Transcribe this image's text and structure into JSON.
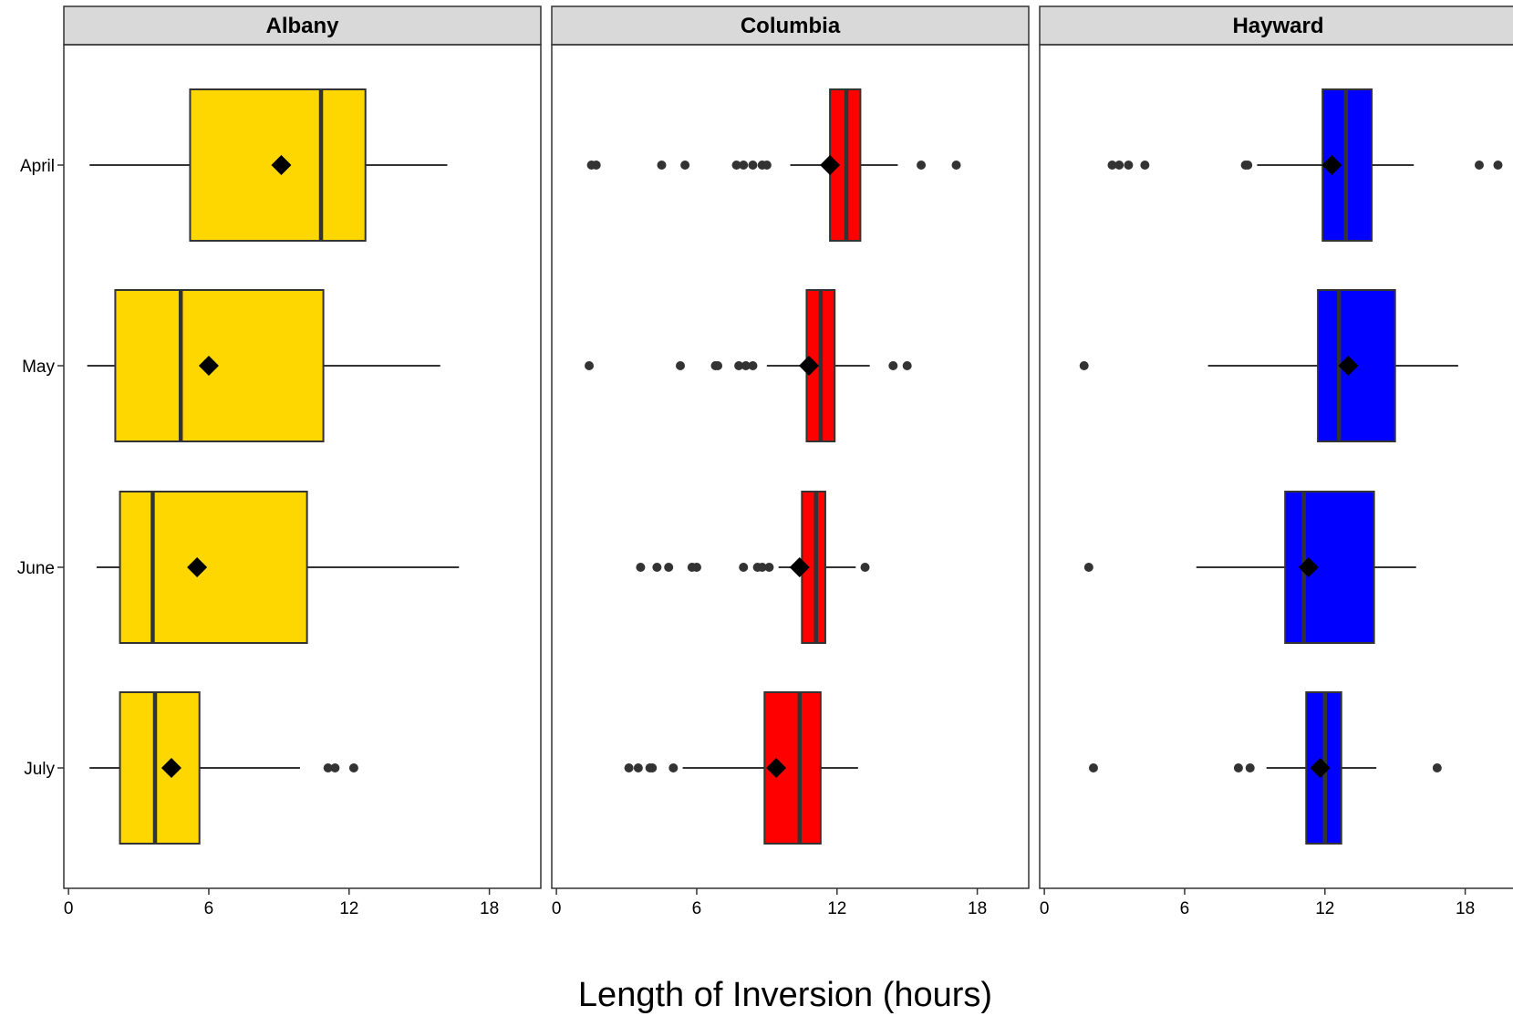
{
  "chart_data": {
    "type": "boxplot",
    "xlabel": "Length of Inversion (hours)",
    "ylabel": "",
    "categories": [
      "April",
      "May",
      "June",
      "July"
    ],
    "x_ticks": [
      0,
      6,
      12,
      18
    ],
    "xlim": [
      -0.2,
      20.2
    ],
    "grid": false,
    "legend": "none",
    "panels": [
      {
        "name": "Albany",
        "color": "#FFD700",
        "boxes": [
          {
            "category": "April",
            "whisker_low": 0.9,
            "q1": 5.2,
            "median": 10.8,
            "q3": 12.7,
            "whisker_high": 16.2,
            "mean": 9.1,
            "outliers": []
          },
          {
            "category": "May",
            "whisker_low": 0.8,
            "q1": 2.0,
            "median": 4.8,
            "q3": 10.9,
            "whisker_high": 15.9,
            "mean": 6.0,
            "outliers": []
          },
          {
            "category": "June",
            "whisker_low": 1.2,
            "q1": 2.2,
            "median": 3.6,
            "q3": 10.2,
            "whisker_high": 16.7,
            "mean": 5.5,
            "outliers": []
          },
          {
            "category": "July",
            "whisker_low": 0.9,
            "q1": 2.2,
            "median": 3.7,
            "q3": 5.6,
            "whisker_high": 9.9,
            "mean": 4.4,
            "outliers": [
              11.1,
              11.4,
              12.2
            ]
          }
        ]
      },
      {
        "name": "Columbia",
        "color": "#FF0000",
        "boxes": [
          {
            "category": "April",
            "whisker_low": 10.0,
            "q1": 11.7,
            "median": 12.4,
            "q3": 13.0,
            "whisker_high": 14.6,
            "mean": 11.7,
            "outliers": [
              1.5,
              1.7,
              4.5,
              5.5,
              7.7,
              8.0,
              8.4,
              8.8,
              9.0,
              15.6,
              17.1
            ]
          },
          {
            "category": "May",
            "whisker_low": 9.0,
            "q1": 10.7,
            "median": 11.3,
            "q3": 11.9,
            "whisker_high": 13.4,
            "mean": 10.8,
            "outliers": [
              1.4,
              5.3,
              6.8,
              6.9,
              7.8,
              8.1,
              8.4,
              14.4,
              15.0
            ]
          },
          {
            "category": "June",
            "whisker_low": 9.5,
            "q1": 10.5,
            "median": 11.1,
            "q3": 11.5,
            "whisker_high": 12.8,
            "mean": 10.4,
            "outliers": [
              3.6,
              4.3,
              4.8,
              5.8,
              6.0,
              8.0,
              8.6,
              8.8,
              9.1,
              13.2
            ]
          },
          {
            "category": "July",
            "whisker_low": 5.4,
            "q1": 8.9,
            "median": 10.4,
            "q3": 11.3,
            "whisker_high": 12.9,
            "mean": 9.4,
            "outliers": [
              3.1,
              3.5,
              4.0,
              4.1,
              5.0
            ]
          }
        ]
      },
      {
        "name": "Hayward",
        "color": "#0000FF",
        "boxes": [
          {
            "category": "April",
            "whisker_low": 9.1,
            "q1": 11.9,
            "median": 12.9,
            "q3": 14.0,
            "whisker_high": 15.8,
            "mean": 12.3,
            "outliers": [
              2.9,
              3.2,
              3.6,
              4.3,
              8.6,
              8.7,
              18.6,
              19.4
            ]
          },
          {
            "category": "May",
            "whisker_low": 7.0,
            "q1": 11.7,
            "median": 12.6,
            "q3": 15.0,
            "whisker_high": 17.7,
            "mean": 13.0,
            "outliers": [
              1.7
            ]
          },
          {
            "category": "June",
            "whisker_low": 6.5,
            "q1": 10.3,
            "median": 11.1,
            "q3": 14.1,
            "whisker_high": 15.9,
            "mean": 11.3,
            "outliers": [
              1.9
            ]
          },
          {
            "category": "July",
            "whisker_low": 9.5,
            "q1": 11.2,
            "median": 12.0,
            "q3": 12.7,
            "whisker_high": 14.2,
            "mean": 11.8,
            "outliers": [
              2.1,
              8.3,
              8.8,
              16.8
            ]
          }
        ]
      }
    ]
  }
}
